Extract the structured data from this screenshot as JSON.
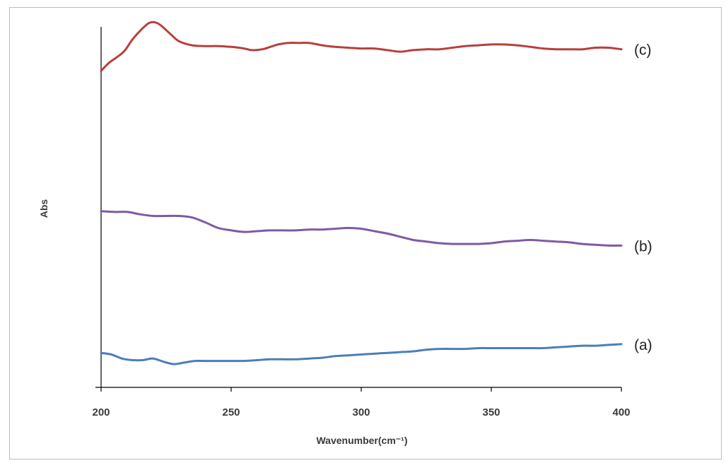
{
  "chart_data": {
    "type": "line",
    "title": "",
    "xlabel": "Wavenumber(cm⁻¹)",
    "ylabel": "Abs",
    "xlim": [
      200,
      400
    ],
    "ylim": [
      0,
      4.5
    ],
    "x_ticks": [
      "200",
      "250",
      "300",
      "350",
      "400"
    ],
    "y_ticks": [],
    "grid": false,
    "legend": "none",
    "series": [
      {
        "name": "(a)",
        "color": "#4a7ebb",
        "x": [
          200,
          204,
          208,
          212,
          216,
          220,
          224,
          228,
          232,
          236,
          240,
          245,
          250,
          255,
          260,
          265,
          270,
          275,
          280,
          285,
          290,
          295,
          300,
          305,
          310,
          315,
          320,
          325,
          330,
          335,
          340,
          345,
          350,
          355,
          360,
          365,
          370,
          375,
          380,
          385,
          390,
          395,
          400
        ],
        "values": [
          0.43,
          0.41,
          0.36,
          0.34,
          0.34,
          0.36,
          0.32,
          0.29,
          0.31,
          0.33,
          0.33,
          0.33,
          0.33,
          0.33,
          0.34,
          0.35,
          0.35,
          0.35,
          0.36,
          0.37,
          0.39,
          0.4,
          0.41,
          0.42,
          0.43,
          0.44,
          0.45,
          0.47,
          0.48,
          0.48,
          0.48,
          0.49,
          0.49,
          0.49,
          0.49,
          0.49,
          0.49,
          0.5,
          0.51,
          0.52,
          0.52,
          0.53,
          0.54
        ]
      },
      {
        "name": "(b)",
        "color": "#7d5aa6",
        "x": [
          200,
          205,
          210,
          215,
          220,
          225,
          230,
          235,
          240,
          245,
          250,
          255,
          260,
          265,
          270,
          275,
          280,
          285,
          290,
          295,
          300,
          305,
          310,
          315,
          320,
          325,
          330,
          335,
          340,
          345,
          350,
          355,
          360,
          365,
          370,
          375,
          380,
          385,
          390,
          395,
          400
        ],
        "values": [
          2.2,
          2.19,
          2.19,
          2.16,
          2.14,
          2.14,
          2.14,
          2.12,
          2.06,
          1.99,
          1.96,
          1.94,
          1.95,
          1.96,
          1.96,
          1.96,
          1.97,
          1.97,
          1.98,
          1.99,
          1.98,
          1.95,
          1.92,
          1.88,
          1.84,
          1.82,
          1.8,
          1.79,
          1.79,
          1.79,
          1.8,
          1.82,
          1.83,
          1.84,
          1.83,
          1.82,
          1.81,
          1.79,
          1.78,
          1.77,
          1.77
        ]
      },
      {
        "name": "(c)",
        "color": "#b8403c",
        "x": [
          200,
          203,
          206,
          209,
          212,
          215,
          218,
          220,
          222,
          224,
          227,
          230,
          235,
          240,
          245,
          250,
          255,
          258,
          262,
          265,
          268,
          272,
          276,
          280,
          285,
          290,
          295,
          300,
          305,
          310,
          315,
          320,
          325,
          330,
          335,
          340,
          345,
          350,
          355,
          360,
          365,
          370,
          375,
          380,
          385,
          390,
          395,
          400
        ],
        "values": [
          3.95,
          4.05,
          4.12,
          4.2,
          4.34,
          4.45,
          4.54,
          4.56,
          4.54,
          4.49,
          4.4,
          4.32,
          4.27,
          4.26,
          4.26,
          4.25,
          4.23,
          4.21,
          4.22,
          4.25,
          4.28,
          4.3,
          4.3,
          4.3,
          4.27,
          4.25,
          4.24,
          4.23,
          4.23,
          4.21,
          4.19,
          4.21,
          4.22,
          4.22,
          4.24,
          4.26,
          4.27,
          4.28,
          4.28,
          4.27,
          4.25,
          4.23,
          4.22,
          4.22,
          4.22,
          4.24,
          4.24,
          4.22
        ]
      }
    ]
  }
}
